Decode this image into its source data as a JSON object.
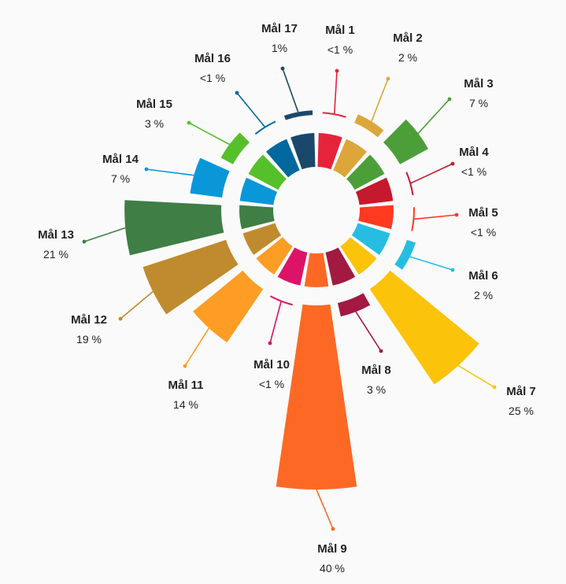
{
  "chart_data": {
    "type": "radial-bar",
    "title": "",
    "unit": "%",
    "categories": [
      "Mål 1",
      "Mål 2",
      "Mål 3",
      "Mål 4",
      "Mål 5",
      "Mål 6",
      "Mål 7",
      "Mål 8",
      "Mål 9",
      "Mål 10",
      "Mål 11",
      "Mål 12",
      "Mål 13",
      "Mål 14",
      "Mål 15",
      "Mål 16",
      "Mål 17"
    ],
    "values": [
      0.5,
      2,
      7,
      0.5,
      0.5,
      2,
      25,
      3,
      40,
      0.5,
      14,
      19,
      21,
      7,
      3,
      0.5,
      1
    ],
    "value_labels": [
      "<1 %",
      "2 %",
      "7 %",
      "<1 %",
      "<1 %",
      "2 %",
      "25 %",
      "3 %",
      "40 %",
      "<1 %",
      "14 %",
      "19 %",
      "21 %",
      "7 %",
      "3 %",
      "<1 %",
      "1%"
    ],
    "colors": [
      "#E5243B",
      "#DDA63A",
      "#4C9F38",
      "#C5192D",
      "#FF3A21",
      "#26BDE2",
      "#FCC30B",
      "#A21942",
      "#FD6925",
      "#DD1367",
      "#FD9D24",
      "#BF8B2E",
      "#3F7E44",
      "#0A97D9",
      "#56C02B",
      "#00689D",
      "#19486A"
    ]
  }
}
